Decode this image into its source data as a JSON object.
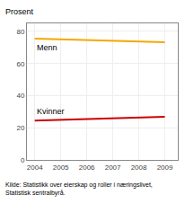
{
  "chart_data": {
    "type": "line",
    "y_label": "Prosent",
    "annotations": [
      "Kilde: Statistikk over eierskap og roller i næringslivet,\nStatistisk sentralbyrå."
    ],
    "x": [
      2004,
      2005,
      2006,
      2007,
      2008,
      2009
    ],
    "series": [
      {
        "name": "Menn",
        "color": "#F5A800",
        "values": [
          75.5,
          75.0,
          74.5,
          74.2,
          73.8,
          73.2
        ]
      },
      {
        "name": "Kvinner",
        "color": "#CC0000",
        "values": [
          24.5,
          25.0,
          25.5,
          25.8,
          26.2,
          26.8
        ]
      }
    ],
    "xlim": [
      2003.7,
      2009.5
    ],
    "xticks": [
      2004,
      2005,
      2006,
      2007,
      2008,
      2009
    ],
    "ylim": [
      0,
      85
    ],
    "yticks": [
      0,
      20,
      40,
      60,
      80
    ],
    "grid": true
  }
}
